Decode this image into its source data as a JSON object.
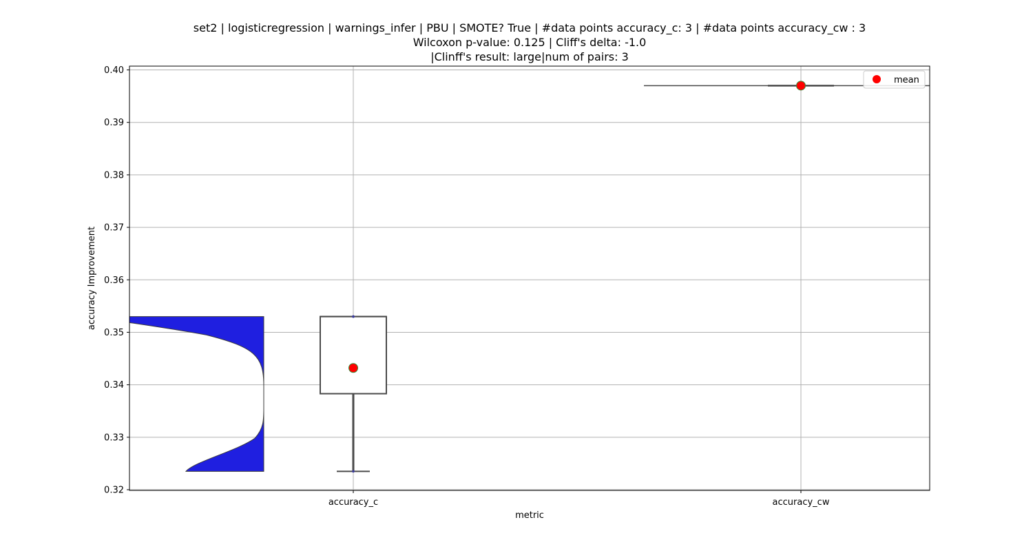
{
  "chart_data": {
    "type": "violin+box",
    "title_lines": [
      "set2 | logisticregression | warnings_infer | PBU | SMOTE? True | #data points accuracy_c: 3 | #data points accuracy_cw : 3",
      "Wilcoxon p-value: 0.125 | Cliff's delta: -1.0",
      "|Clinff's result: large|num of pairs: 3"
    ],
    "xlabel": "metric",
    "ylabel": "accuracy Improvement",
    "categories": [
      "accuracy_c",
      "accuracy_cw"
    ],
    "ylim": [
      0.32,
      0.401
    ],
    "yticks": [
      0.32,
      0.33,
      0.34,
      0.35,
      0.36,
      0.37,
      0.38,
      0.39,
      0.4
    ],
    "ytick_labels": [
      "0.32",
      "0.33",
      "0.34",
      "0.35",
      "0.36",
      "0.37",
      "0.38",
      "0.39",
      "0.40"
    ],
    "grid": true,
    "legend": {
      "placement": "top-right",
      "entries": [
        "mean"
      ]
    },
    "colors": {
      "violin_fill": "#1f1fe0",
      "mean_marker": "#ff0000",
      "mean_edge": "#3a8a3a",
      "box_edge": "#4a4a4a",
      "grid": "#b0b0b0"
    },
    "series": [
      {
        "category": "accuracy_c",
        "points": [
          0.3235,
          0.353,
          0.353
        ],
        "mean": 0.3432,
        "box": {
          "min": 0.3235,
          "q1": 0.3383,
          "median": 0.353,
          "q3": 0.353,
          "max": 0.353
        },
        "violin_range": [
          0.3235,
          0.353
        ]
      },
      {
        "category": "accuracy_cw",
        "points": [
          0.397,
          0.397,
          0.397
        ],
        "mean": 0.397,
        "box": {
          "min": 0.397,
          "q1": 0.397,
          "median": 0.397,
          "q3": 0.397,
          "max": 0.397
        },
        "violin_range": [
          0.397,
          0.397
        ]
      }
    ]
  }
}
